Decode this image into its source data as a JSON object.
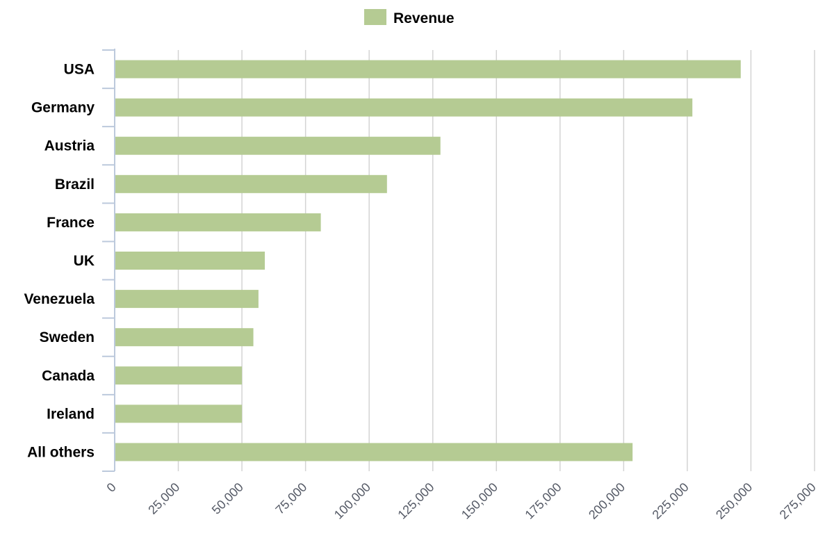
{
  "chart_data": {
    "type": "bar",
    "orientation": "horizontal",
    "categories": [
      "USA",
      "Germany",
      "Austria",
      "Brazil",
      "France",
      "UK",
      "Venezuela",
      "Sweden",
      "Canada",
      "Ireland",
      "All others"
    ],
    "series": [
      {
        "name": "Revenue",
        "color": "#b5cb93",
        "values": [
          246000,
          227000,
          128000,
          107000,
          81000,
          59000,
          56500,
          54500,
          50000,
          50000,
          203500
        ]
      }
    ],
    "xlim": [
      0,
      275000
    ],
    "x_ticks": [
      0,
      25000,
      50000,
      75000,
      100000,
      125000,
      150000,
      175000,
      200000,
      225000,
      250000,
      275000
    ],
    "x_tick_labels": [
      "0",
      "25,000",
      "50,000",
      "75,000",
      "100,000",
      "125,000",
      "150,000",
      "175,000",
      "200,000",
      "225,000",
      "250,000",
      "275,000"
    ],
    "grid": true,
    "legend_position": "top-center",
    "title": "",
    "xlabel": "",
    "ylabel": ""
  },
  "colors": {
    "grid": "#d3d3d3",
    "axis": "#bcc9dc",
    "tick_text": "#555a66"
  }
}
